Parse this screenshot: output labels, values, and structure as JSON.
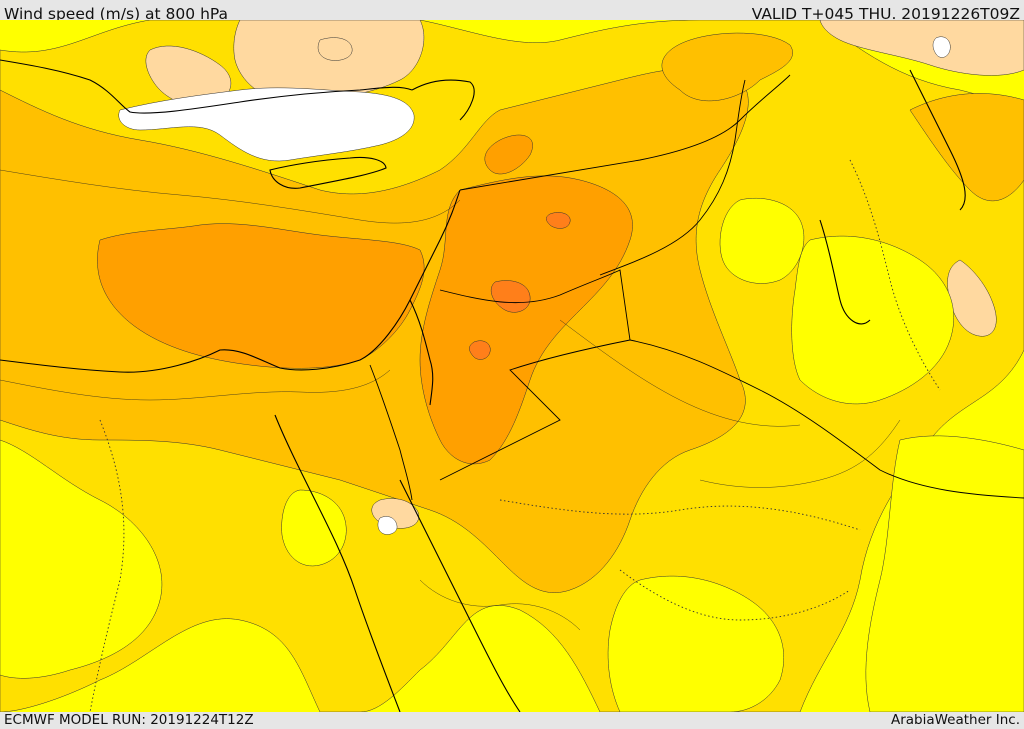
{
  "header": {
    "title": "Wind speed (m/s) at 800 hPa",
    "valid": "VALID T+045 THU. 20191226T09Z"
  },
  "footer": {
    "model_run": "ECMWF MODEL RUN: 20191224T12Z",
    "brand": "ArabiaWeather Inc."
  },
  "map": {
    "colors": {
      "very_light": "#ffffff",
      "light_tan": "#ffd9a0",
      "yellow": "#ffff00",
      "gold": "#ffe000",
      "amber": "#ffc000",
      "orange": "#ffa000",
      "dark_orange": "#ff7f1a"
    }
  }
}
